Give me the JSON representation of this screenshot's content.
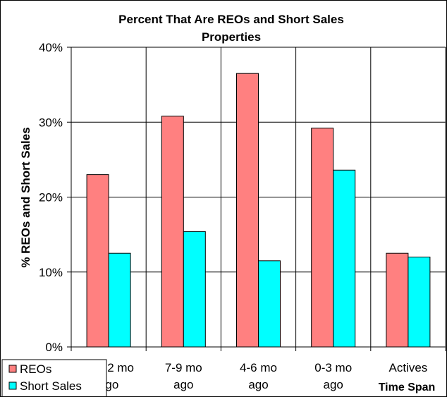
{
  "chart_data": {
    "type": "bar",
    "title_lines": [
      "Percent That Are REOs and Short Sales",
      "Properties"
    ],
    "ylabel": "% REOs and Short Sales",
    "xlabel": "Time Span",
    "categories": [
      [
        "10-12 mo",
        "ago"
      ],
      [
        "7-9 mo",
        "ago"
      ],
      [
        "4-6 mo",
        "ago"
      ],
      [
        "0-3 mo",
        "ago"
      ],
      [
        "Actives"
      ]
    ],
    "series": [
      {
        "name": "REOs",
        "color": "#ff8080",
        "values": [
          0.23,
          0.308,
          0.365,
          0.292,
          0.125
        ]
      },
      {
        "name": "Short Sales",
        "color": "#00ffff",
        "values": [
          0.125,
          0.154,
          0.115,
          0.236,
          0.12
        ]
      }
    ],
    "yticks": [
      "0%",
      "10%",
      "20%",
      "30%",
      "40%"
    ],
    "ylim": [
      0,
      0.4
    ],
    "grid": true,
    "legend_position": "bottom-left"
  }
}
